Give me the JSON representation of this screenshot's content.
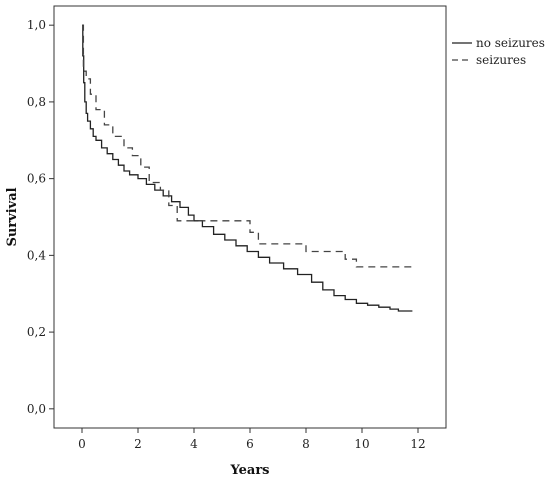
{
  "chart_data": {
    "type": "line",
    "title": "",
    "xlabel": "Years",
    "ylabel": "Survival",
    "xlim": [
      -1,
      13
    ],
    "ylim": [
      -0.05,
      1.05
    ],
    "xticks": [
      0,
      2,
      4,
      6,
      8,
      10,
      12
    ],
    "xtick_labels": [
      "0",
      "2",
      "4",
      "6",
      "8",
      "10",
      "12"
    ],
    "yticks": [
      0.0,
      0.2,
      0.4,
      0.6,
      0.8,
      1.0
    ],
    "ytick_labels": [
      "0,0",
      "0,2",
      "0,4",
      "0,6",
      "0,8",
      "1,0"
    ],
    "grid": false,
    "legend_position": "outside-top-right",
    "step": true,
    "series": [
      {
        "name": "no seizures",
        "style": "solid",
        "color": "#222222",
        "x": [
          0,
          0.03,
          0.06,
          0.1,
          0.15,
          0.2,
          0.3,
          0.4,
          0.5,
          0.7,
          0.9,
          1.1,
          1.3,
          1.5,
          1.7,
          2.0,
          2.3,
          2.6,
          2.9,
          3.2,
          3.5,
          3.8,
          4.0,
          4.3,
          4.7,
          5.1,
          5.5,
          5.9,
          6.3,
          6.7,
          7.2,
          7.7,
          8.2,
          8.6,
          9.0,
          9.4,
          9.8,
          10.2,
          10.6,
          11.0,
          11.3,
          11.8
        ],
        "y": [
          1.0,
          0.92,
          0.85,
          0.8,
          0.77,
          0.75,
          0.73,
          0.71,
          0.7,
          0.68,
          0.665,
          0.65,
          0.635,
          0.62,
          0.61,
          0.6,
          0.585,
          0.57,
          0.555,
          0.54,
          0.525,
          0.505,
          0.49,
          0.475,
          0.455,
          0.44,
          0.425,
          0.41,
          0.395,
          0.38,
          0.365,
          0.35,
          0.33,
          0.31,
          0.295,
          0.285,
          0.275,
          0.27,
          0.265,
          0.26,
          0.255,
          0.255
        ]
      },
      {
        "name": "seizures",
        "style": "dashed",
        "color": "#444444",
        "x": [
          0,
          0.05,
          0.15,
          0.3,
          0.5,
          0.8,
          1.1,
          1.5,
          1.8,
          2.1,
          2.4,
          2.8,
          3.1,
          3.4,
          4.0,
          5.0,
          6.0,
          6.3,
          7.0,
          8.0,
          9.0,
          9.4,
          9.8,
          10.5,
          11.8
        ],
        "y": [
          1.0,
          0.88,
          0.86,
          0.82,
          0.78,
          0.74,
          0.71,
          0.68,
          0.66,
          0.63,
          0.59,
          0.57,
          0.53,
          0.49,
          0.49,
          0.49,
          0.46,
          0.43,
          0.43,
          0.41,
          0.41,
          0.39,
          0.37,
          0.37,
          0.37
        ]
      }
    ]
  }
}
